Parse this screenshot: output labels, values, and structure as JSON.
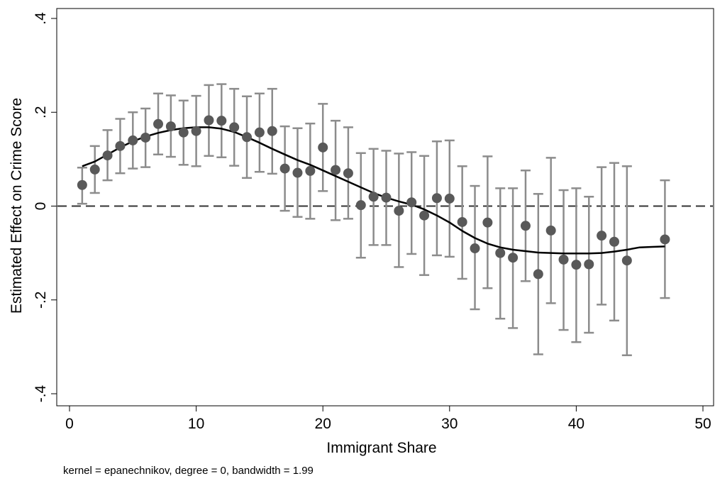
{
  "chart_data": {
    "type": "scatter",
    "xlabel": "Immigrant Share",
    "ylabel": "Estimated Effect on Crime Score",
    "note": "kernel = epanechnikov, degree = 0, bandwidth = 1.99",
    "xlim": [
      0,
      50
    ],
    "ylim": [
      -0.4,
      0.4
    ],
    "x_ticks": [
      0,
      10,
      20,
      30,
      40,
      50
    ],
    "x_tick_labels": [
      "0",
      "10",
      "20",
      "30",
      "40",
      "50"
    ],
    "y_ticks": [
      -0.4,
      -0.2,
      0,
      0.2,
      0.4
    ],
    "y_tick_labels": [
      "-.4",
      "-.2",
      "0",
      ".2",
      ".4"
    ],
    "reference_line": {
      "y": 0,
      "style": "dashed"
    },
    "grid": false,
    "colors": {
      "points": "#595959",
      "error_bars": "#8c8c8c",
      "smooth_line": "#000000",
      "reference": "#333333"
    },
    "points": [
      {
        "x": 1,
        "y": 0.045,
        "lo": 0.005,
        "hi": 0.082
      },
      {
        "x": 2,
        "y": 0.078,
        "lo": 0.028,
        "hi": 0.128
      },
      {
        "x": 3,
        "y": 0.108,
        "lo": 0.055,
        "hi": 0.162
      },
      {
        "x": 4,
        "y": 0.128,
        "lo": 0.07,
        "hi": 0.186
      },
      {
        "x": 5,
        "y": 0.14,
        "lo": 0.08,
        "hi": 0.2
      },
      {
        "x": 6,
        "y": 0.146,
        "lo": 0.083,
        "hi": 0.208
      },
      {
        "x": 7,
        "y": 0.175,
        "lo": 0.11,
        "hi": 0.24
      },
      {
        "x": 8,
        "y": 0.17,
        "lo": 0.105,
        "hi": 0.236
      },
      {
        "x": 9,
        "y": 0.157,
        "lo": 0.088,
        "hi": 0.225
      },
      {
        "x": 10,
        "y": 0.16,
        "lo": 0.085,
        "hi": 0.235
      },
      {
        "x": 11,
        "y": 0.183,
        "lo": 0.107,
        "hi": 0.258
      },
      {
        "x": 12,
        "y": 0.182,
        "lo": 0.104,
        "hi": 0.26
      },
      {
        "x": 13,
        "y": 0.168,
        "lo": 0.086,
        "hi": 0.25
      },
      {
        "x": 14,
        "y": 0.147,
        "lo": 0.06,
        "hi": 0.234
      },
      {
        "x": 15,
        "y": 0.157,
        "lo": 0.073,
        "hi": 0.24
      },
      {
        "x": 16,
        "y": 0.16,
        "lo": 0.069,
        "hi": 0.25
      },
      {
        "x": 17,
        "y": 0.08,
        "lo": -0.01,
        "hi": 0.17
      },
      {
        "x": 18,
        "y": 0.071,
        "lo": -0.023,
        "hi": 0.166
      },
      {
        "x": 19,
        "y": 0.075,
        "lo": -0.027,
        "hi": 0.176
      },
      {
        "x": 20,
        "y": 0.125,
        "lo": 0.032,
        "hi": 0.218
      },
      {
        "x": 21,
        "y": 0.077,
        "lo": -0.03,
        "hi": 0.182
      },
      {
        "x": 22,
        "y": 0.07,
        "lo": -0.027,
        "hi": 0.168
      },
      {
        "x": 23,
        "y": 0.002,
        "lo": -0.11,
        "hi": 0.113
      },
      {
        "x": 24,
        "y": 0.02,
        "lo": -0.083,
        "hi": 0.122
      },
      {
        "x": 25,
        "y": 0.018,
        "lo": -0.083,
        "hi": 0.118
      },
      {
        "x": 26,
        "y": -0.01,
        "lo": -0.13,
        "hi": 0.112
      },
      {
        "x": 27,
        "y": 0.008,
        "lo": -0.102,
        "hi": 0.115
      },
      {
        "x": 28,
        "y": -0.02,
        "lo": -0.147,
        "hi": 0.107
      },
      {
        "x": 29,
        "y": 0.017,
        "lo": -0.105,
        "hi": 0.138
      },
      {
        "x": 30,
        "y": 0.016,
        "lo": -0.108,
        "hi": 0.14
      },
      {
        "x": 31,
        "y": -0.034,
        "lo": -0.155,
        "hi": 0.085
      },
      {
        "x": 32,
        "y": -0.09,
        "lo": -0.22,
        "hi": 0.043
      },
      {
        "x": 33,
        "y": -0.035,
        "lo": -0.175,
        "hi": 0.106
      },
      {
        "x": 34,
        "y": -0.1,
        "lo": -0.24,
        "hi": 0.038
      },
      {
        "x": 35,
        "y": -0.11,
        "lo": -0.26,
        "hi": 0.038
      },
      {
        "x": 36,
        "y": -0.042,
        "lo": -0.16,
        "hi": 0.076
      },
      {
        "x": 37,
        "y": -0.145,
        "lo": -0.316,
        "hi": 0.026
      },
      {
        "x": 38,
        "y": -0.052,
        "lo": -0.207,
        "hi": 0.103
      },
      {
        "x": 39,
        "y": -0.114,
        "lo": -0.264,
        "hi": 0.034
      },
      {
        "x": 40,
        "y": -0.125,
        "lo": -0.29,
        "hi": 0.038
      },
      {
        "x": 41,
        "y": -0.124,
        "lo": -0.27,
        "hi": 0.02
      },
      {
        "x": 42,
        "y": -0.063,
        "lo": -0.21,
        "hi": 0.083
      },
      {
        "x": 43,
        "y": -0.076,
        "lo": -0.244,
        "hi": 0.092
      },
      {
        "x": 44,
        "y": -0.116,
        "lo": -0.318,
        "hi": 0.085
      },
      {
        "x": 47,
        "y": -0.071,
        "lo": -0.196,
        "hi": 0.055
      }
    ],
    "smooth": {
      "x": [
        1,
        2,
        3,
        4,
        5,
        6,
        7,
        8,
        9,
        10,
        11,
        12,
        13,
        14,
        15,
        16,
        17,
        18,
        19,
        20,
        21,
        22,
        23,
        24,
        25,
        26,
        27,
        28,
        29,
        30,
        31,
        32,
        33,
        34,
        35,
        36,
        37,
        38,
        39,
        40,
        41,
        42,
        43,
        44,
        45,
        46,
        47
      ],
      "y": [
        0.085,
        0.095,
        0.11,
        0.125,
        0.138,
        0.148,
        0.156,
        0.162,
        0.166,
        0.168,
        0.168,
        0.165,
        0.158,
        0.147,
        0.135,
        0.122,
        0.11,
        0.098,
        0.088,
        0.076,
        0.064,
        0.052,
        0.04,
        0.028,
        0.018,
        0.01,
        0.003,
        -0.007,
        -0.02,
        -0.035,
        -0.053,
        -0.068,
        -0.08,
        -0.088,
        -0.093,
        -0.096,
        -0.099,
        -0.1,
        -0.101,
        -0.101,
        -0.101,
        -0.1,
        -0.097,
        -0.093,
        -0.088,
        -0.087,
        -0.086
      ]
    }
  }
}
